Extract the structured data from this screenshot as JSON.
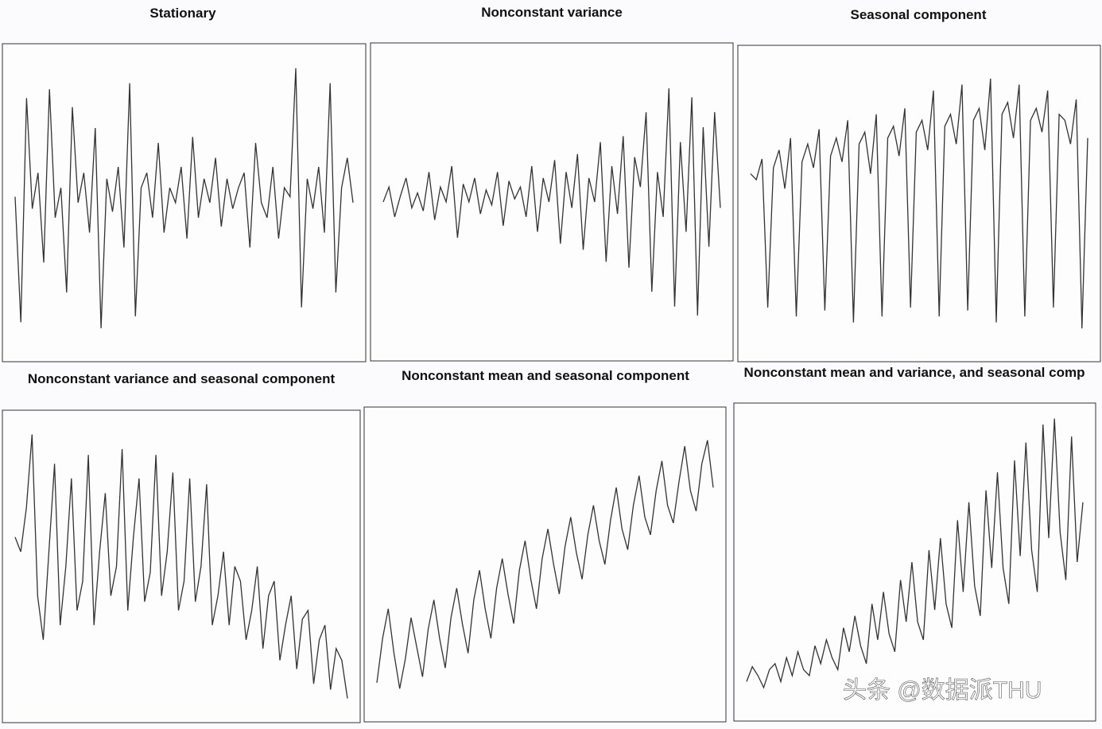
{
  "chart_data": [
    {
      "type": "line",
      "title": "Stationary",
      "color": "#333333",
      "ylim": [
        0,
        100
      ],
      "values": [
        52,
        10,
        85,
        48,
        60,
        30,
        88,
        45,
        55,
        20,
        82,
        50,
        60,
        40,
        75,
        8,
        58,
        47,
        62,
        35,
        90,
        12,
        55,
        60,
        45,
        70,
        40,
        55,
        50,
        62,
        38,
        72,
        45,
        58,
        50,
        65,
        42,
        58,
        48,
        55,
        60,
        35,
        70,
        50,
        45,
        62,
        38,
        55,
        52,
        95,
        15,
        58,
        48,
        62,
        40,
        90,
        20,
        55,
        65,
        50
      ]
    },
    {
      "type": "line",
      "title": "Nonconstant variance",
      "color": "#333333",
      "ylim": [
        0,
        100
      ],
      "values": [
        50,
        55,
        45,
        52,
        58,
        48,
        53,
        47,
        60,
        44,
        55,
        50,
        62,
        38,
        56,
        50,
        58,
        46,
        54,
        49,
        60,
        42,
        57,
        51,
        55,
        45,
        62,
        40,
        58,
        50,
        64,
        36,
        60,
        48,
        66,
        34,
        58,
        50,
        70,
        30,
        62,
        46,
        72,
        28,
        65,
        55,
        80,
        20,
        60,
        45,
        88,
        15,
        70,
        40,
        85,
        12,
        75,
        35,
        80,
        48
      ]
    },
    {
      "type": "line",
      "title": "Seasonal component",
      "color": "#333333",
      "ylim": [
        0,
        100
      ],
      "values": [
        60,
        58,
        65,
        15,
        62,
        68,
        55,
        72,
        12,
        64,
        70,
        62,
        75,
        14,
        66,
        72,
        64,
        78,
        10,
        70,
        74,
        60,
        80,
        12,
        72,
        76,
        66,
        82,
        15,
        74,
        78,
        68,
        88,
        12,
        76,
        80,
        70,
        90,
        14,
        78,
        82,
        68,
        92,
        10,
        80,
        84,
        72,
        90,
        12,
        78,
        82,
        74,
        88,
        15,
        80,
        78,
        70,
        85,
        8,
        72
      ]
    },
    {
      "type": "line",
      "title": "Nonconstant variance and seasonal component",
      "color": "#333333",
      "ylim": [
        0,
        100
      ],
      "values": [
        60,
        55,
        70,
        95,
        40,
        25,
        55,
        85,
        30,
        50,
        80,
        35,
        45,
        88,
        30,
        55,
        75,
        40,
        50,
        90,
        35,
        60,
        80,
        38,
        48,
        88,
        40,
        55,
        82,
        35,
        45,
        80,
        38,
        50,
        78,
        30,
        40,
        55,
        30,
        50,
        45,
        25,
        35,
        50,
        22,
        40,
        45,
        18,
        30,
        40,
        15,
        32,
        35,
        10,
        25,
        30,
        8,
        22,
        18,
        5
      ]
    },
    {
      "type": "line",
      "title": "Nonconstant mean and seasonal component",
      "color": "#333333",
      "ylim": [
        0,
        100
      ],
      "values": [
        10,
        25,
        35,
        20,
        8,
        18,
        32,
        22,
        12,
        28,
        38,
        25,
        15,
        32,
        42,
        30,
        20,
        38,
        48,
        35,
        25,
        42,
        52,
        40,
        30,
        48,
        58,
        45,
        35,
        52,
        62,
        50,
        40,
        56,
        66,
        54,
        45,
        60,
        70,
        58,
        50,
        65,
        76,
        62,
        55,
        70,
        80,
        66,
        60,
        75,
        85,
        70,
        64,
        78,
        90,
        75,
        68,
        84,
        92,
        76
      ]
    },
    {
      "type": "line",
      "title": "Nonconstant mean and variance, and seasonal comp",
      "color": "#333333",
      "ylim": [
        0,
        100
      ],
      "values": [
        10,
        15,
        12,
        8,
        14,
        16,
        10,
        18,
        12,
        20,
        14,
        12,
        22,
        16,
        24,
        18,
        14,
        28,
        20,
        32,
        22,
        16,
        36,
        24,
        40,
        26,
        20,
        44,
        30,
        50,
        30,
        24,
        54,
        34,
        58,
        36,
        28,
        64,
        40,
        70,
        42,
        32,
        74,
        48,
        80,
        48,
        36,
        84,
        52,
        90,
        54,
        40,
        96,
        58,
        98,
        60,
        44,
        92,
        50,
        70
      ]
    }
  ],
  "watermark": "头条 @数据派THU"
}
